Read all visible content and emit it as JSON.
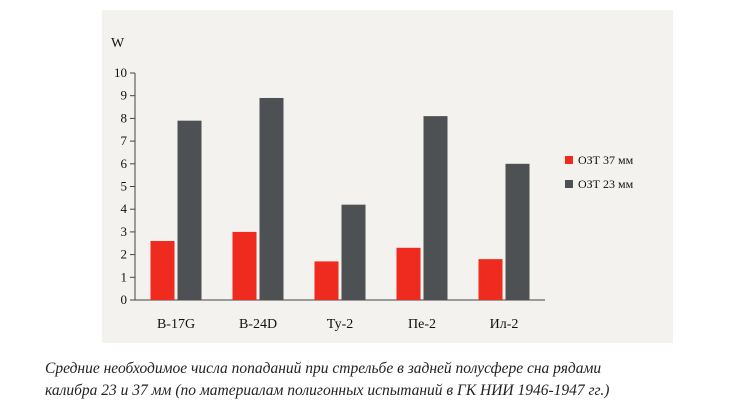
{
  "chart_data": {
    "type": "bar",
    "ylabel": "W",
    "ylim": [
      0,
      10
    ],
    "yticks": [
      "0",
      "1",
      "2",
      "3",
      "4",
      "5",
      "6",
      "7",
      "8",
      "9",
      "10"
    ],
    "categories": [
      "B-17G",
      "B-24D",
      "Ту-2",
      "Пе-2",
      "Ил-2"
    ],
    "series": [
      {
        "name": "ОЗТ 37 мм",
        "color": "#ee2b1e",
        "values": [
          2.6,
          3.0,
          1.7,
          2.3,
          1.8
        ]
      },
      {
        "name": "ОЗТ 23 мм",
        "color": "#4d5153",
        "values": [
          7.9,
          8.9,
          4.2,
          8.1,
          6.0
        ]
      }
    ],
    "legend_position": "right",
    "grid": false
  },
  "caption": {
    "line1": "Средние необходимое числа попаданий при стрельбе в задней полусфере сна рядами",
    "line2": "калибра 23 и 37 мм (по материалам полигонных испытаний в ГК НИИ 1946-1947 гг.)"
  }
}
